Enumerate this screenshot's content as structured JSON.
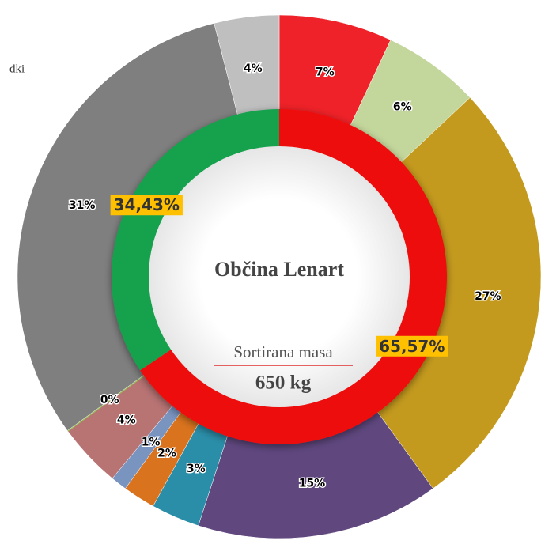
{
  "chart_data": {
    "type": "donut",
    "title": "Občina Lenart",
    "subtitle": "Sortirana masa",
    "annotation": "650 kg",
    "corner_text": "dki",
    "series": [
      {
        "values": [
          7,
          6,
          27,
          15,
          3,
          2,
          1,
          4,
          0,
          31,
          4
        ],
        "value_labels": [
          "7%",
          "6%",
          "27%",
          "15%",
          "3%",
          "2%",
          "1%",
          "4%",
          "0%",
          "31%",
          "4%"
        ],
        "colors": [
          "#ee2228",
          "#c3d69b",
          "#c49a1e",
          "#60487f",
          "#2b8ea8",
          "#d9731e",
          "#7a94c0",
          "#b87373",
          "#9bbb59",
          "#7f7f7f",
          "#bfbfbf"
        ]
      },
      {
        "values": [
          65.57,
          34.43
        ],
        "value_labels": [
          "65,57%",
          "34,43%"
        ],
        "colors": [
          "#ee1111",
          "#12a14e"
        ]
      }
    ]
  }
}
